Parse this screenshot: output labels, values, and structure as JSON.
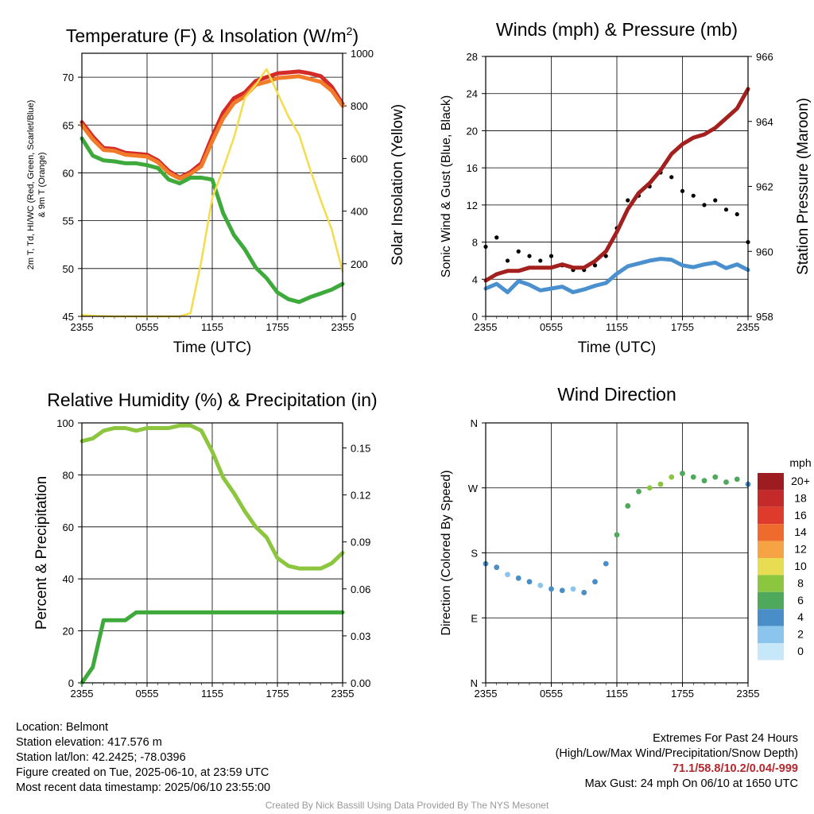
{
  "chart_data": [
    {
      "type": "line",
      "title": "Temperature (F) & Insolation (W/m²)",
      "xlabel": "Time (UTC)",
      "ylabel": "2m T, Td, HI/WC (Red, Green, Scarlet/Blue) & 9m T (Orange)",
      "ylabel_line1": "2m T, Td, HI/WC (Red, Green, Scarlet/Blue)",
      "ylabel_line2": "& 9m T (Orange)",
      "y2label": "Solar Insolation (Yellow)",
      "x_ticks": [
        "2355",
        "0555",
        "1155",
        "1755",
        "2355"
      ],
      "ylim": [
        45,
        72.5
      ],
      "y_ticks": [
        45,
        50,
        55,
        60,
        65,
        70
      ],
      "y2lim": [
        0,
        1000
      ],
      "y2_ticks": [
        0,
        200,
        400,
        600,
        800,
        1000
      ],
      "x_hours": [
        0,
        1,
        2,
        3,
        4,
        5,
        6,
        7,
        8,
        9,
        10,
        11,
        12,
        13,
        14,
        15,
        16,
        17,
        18,
        19,
        20,
        21,
        22,
        23,
        24
      ],
      "series": [
        {
          "name": "2m T",
          "color": "#d42a28",
          "values": [
            65.3,
            63.8,
            62.6,
            62.5,
            62.1,
            62.0,
            61.9,
            61.3,
            60.2,
            59.5,
            60.1,
            61.0,
            63.8,
            66.3,
            67.8,
            68.4,
            69.6,
            70.0,
            70.4,
            70.5,
            70.6,
            70.4,
            70.1,
            69.0,
            67.2
          ]
        },
        {
          "name": "9m T",
          "color": "#f07c2a",
          "values": [
            65.0,
            63.5,
            62.4,
            62.3,
            61.9,
            61.8,
            61.7,
            61.1,
            60.0,
            59.4,
            59.9,
            60.7,
            63.3,
            65.7,
            67.3,
            68.0,
            69.2,
            69.5,
            69.9,
            70.0,
            70.1,
            69.8,
            69.5,
            68.6,
            67.0
          ]
        },
        {
          "name": "Td",
          "color": "#3daa3b",
          "values": [
            63.6,
            61.8,
            61.3,
            61.2,
            61.0,
            61.0,
            60.8,
            60.5,
            59.3,
            58.9,
            59.5,
            59.5,
            59.3,
            55.8,
            53.5,
            52.0,
            50.1,
            49.0,
            47.5,
            46.8,
            46.5,
            47.0,
            47.4,
            47.8,
            48.4
          ]
        },
        {
          "name": "Solar Insolation",
          "color": "#f5dc4a",
          "axis": "y2",
          "values": [
            5,
            2,
            1,
            0,
            0,
            0,
            0,
            0,
            0,
            0,
            12,
            210,
            450,
            560,
            680,
            830,
            880,
            940,
            850,
            760,
            690,
            560,
            440,
            330,
            170
          ]
        }
      ]
    },
    {
      "type": "line",
      "title": "Winds (mph) & Pressure (mb)",
      "xlabel": "Time (UTC)",
      "ylabel": "Sonic Wind & Gust (Blue, Black)",
      "y2label": "Station Pressure (Maroon)",
      "x_ticks": [
        "2355",
        "0555",
        "1155",
        "1755",
        "2355"
      ],
      "ylim": [
        0,
        28
      ],
      "y_ticks": [
        0,
        4,
        8,
        12,
        16,
        20,
        24,
        28
      ],
      "y2lim": [
        958,
        966
      ],
      "y2_ticks": [
        958,
        960,
        962,
        964,
        966
      ],
      "x_hours": [
        0,
        1,
        2,
        3,
        4,
        5,
        6,
        7,
        8,
        9,
        10,
        11,
        12,
        13,
        14,
        15,
        16,
        17,
        18,
        19,
        20,
        21,
        22,
        23,
        24
      ],
      "series": [
        {
          "name": "Sonic Wind",
          "color": "#4a90cf",
          "values": [
            3.0,
            3.5,
            2.6,
            3.8,
            3.4,
            2.8,
            3.0,
            3.2,
            2.6,
            2.9,
            3.3,
            3.6,
            4.6,
            5.4,
            5.7,
            6.0,
            6.2,
            6.1,
            5.5,
            5.3,
            5.6,
            5.8,
            5.2,
            5.6,
            5.0
          ]
        },
        {
          "name": "Gust",
          "color": "#000000",
          "values": [
            7.5,
            8.5,
            6.0,
            7.0,
            6.5,
            6.0,
            6.5,
            5.5,
            5.0,
            5.0,
            5.5,
            6.5,
            9.5,
            12.5,
            13.0,
            14.0,
            15.5,
            15.0,
            13.5,
            13.0,
            12.0,
            12.5,
            11.5,
            11.0,
            8.0
          ]
        },
        {
          "name": "Station Pressure",
          "color": "#a3201f",
          "axis": "y2",
          "values": [
            959.1,
            959.3,
            959.4,
            959.4,
            959.5,
            959.5,
            959.5,
            959.6,
            959.5,
            959.5,
            959.7,
            960.0,
            960.6,
            961.3,
            961.8,
            962.1,
            962.5,
            963.0,
            963.3,
            963.5,
            963.6,
            963.8,
            964.1,
            964.4,
            965.0
          ]
        }
      ]
    },
    {
      "type": "line",
      "title": "Relative Humidity (%) & Precipitation (in)",
      "ylabel": "Percent & Precipitation",
      "x_ticks": [
        "2355",
        "0555",
        "1155",
        "1755",
        "2355"
      ],
      "ylim": [
        0,
        100
      ],
      "y_ticks": [
        0,
        20,
        40,
        60,
        80,
        100
      ],
      "y2lim": [
        0,
        0.166
      ],
      "y2_ticks": [
        "0.00",
        "0.03",
        "0.06",
        "0.09",
        "0.12",
        "0.15"
      ],
      "x_hours": [
        0,
        1,
        2,
        3,
        4,
        5,
        6,
        7,
        8,
        9,
        10,
        11,
        12,
        13,
        14,
        15,
        16,
        17,
        18,
        19,
        20,
        21,
        22,
        23,
        24
      ],
      "series": [
        {
          "name": "Relative Humidity",
          "color": "#8cc63f",
          "values": [
            93,
            94,
            97,
            98,
            98,
            97,
            98,
            98,
            98,
            99,
            99,
            97,
            89,
            79,
            73,
            66,
            60,
            56,
            48,
            45,
            44,
            44,
            44,
            46,
            50
          ]
        },
        {
          "name": "Precipitation",
          "color": "#3daa3b",
          "axis": "y2",
          "values": [
            0.0,
            0.01,
            0.04,
            0.04,
            0.04,
            0.045,
            0.045,
            0.045,
            0.045,
            0.045,
            0.045,
            0.045,
            0.045,
            0.045,
            0.045,
            0.045,
            0.045,
            0.045,
            0.045,
            0.045,
            0.045,
            0.045,
            0.045,
            0.045,
            0.045
          ]
        }
      ]
    },
    {
      "type": "scatter",
      "title": "Wind Direction",
      "ylabel": "Direction (Colored By Speed)",
      "x_ticks": [
        "2355",
        "0555",
        "1155",
        "1755",
        "2355"
      ],
      "y_ticks": [
        "N",
        "E",
        "S",
        "W",
        "N"
      ],
      "ylim": [
        0,
        360
      ],
      "x_hours": [
        0,
        1,
        2,
        3,
        4,
        5,
        6,
        7,
        8,
        9,
        10,
        11,
        12,
        13,
        14,
        15,
        16,
        17,
        18,
        19,
        20,
        21,
        22,
        23,
        24
      ],
      "values": [
        165,
        160,
        150,
        145,
        140,
        135,
        130,
        128,
        130,
        125,
        140,
        165,
        205,
        245,
        265,
        270,
        275,
        285,
        290,
        285,
        280,
        285,
        278,
        282,
        275
      ],
      "speeds": [
        3,
        3,
        2,
        3,
        3,
        2,
        3,
        3,
        2,
        3,
        3,
        4,
        5,
        6,
        6,
        7,
        7,
        7,
        6,
        6,
        6,
        6,
        5,
        5,
        4
      ],
      "legend": {
        "title": "mph",
        "labels": [
          "20+",
          "18",
          "16",
          "14",
          "12",
          "10",
          "8",
          "6",
          "4",
          "2",
          "0"
        ],
        "colors": [
          "#9d1c1f",
          "#c42a2a",
          "#df3b2c",
          "#ef6b2d",
          "#f6a343",
          "#e7dc52",
          "#8cc63f",
          "#4ea95c",
          "#4a8ec8",
          "#8bc4ec",
          "#c7e8f8"
        ],
        "placement": "right"
      }
    }
  ],
  "info": {
    "location": "Location: Belmont",
    "elevation": "Station elevation: 417.576 m",
    "latlon": "Station lat/lon: 42.2425; -78.0396",
    "created": "Figure created on Tue, 2025-06-10, at 23:59 UTC",
    "recent": "Most recent data timestamp: 2025/06/10 23:55:00",
    "extremes_title": "Extremes For Past 24 Hours",
    "extremes_subtitle": "(High/Low/Max Wind/Precipitation/Snow Depth)",
    "extremes_values": "71.1/58.8/10.2/0.04/-999",
    "max_gust": "Max Gust: 24 mph On 06/10 at 1650 UTC"
  },
  "credit": "Created By Nick Bassill Using Data Provided By The NYS Mesonet"
}
